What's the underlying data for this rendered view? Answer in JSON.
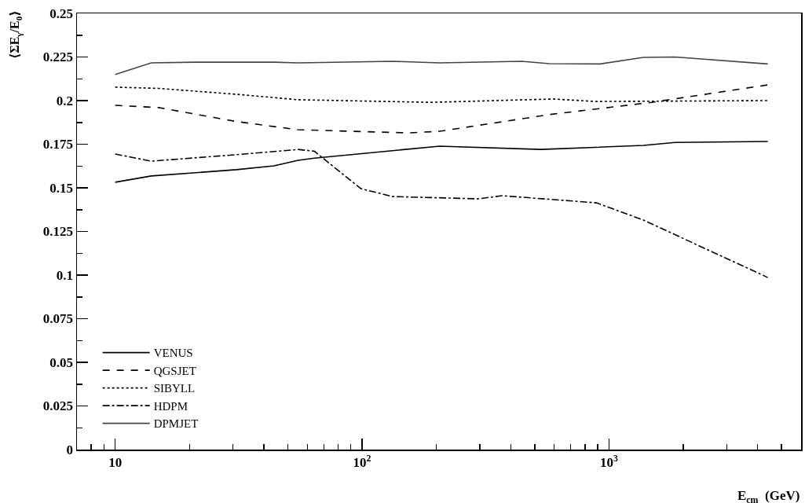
{
  "chart_data": {
    "type": "line",
    "xlabel": "E$_{cm}$  (GeV)",
    "ylabel": "⟨ΣE$_{γ}$/E$_{0}$⟩",
    "log": "x",
    "xlim": [
      7,
      6000
    ],
    "ylim": [
      0,
      0.25
    ],
    "xticks": [
      {
        "value": 8,
        "label": null
      },
      {
        "value": 9,
        "label": null
      },
      10,
      {
        "value": 20,
        "label": null
      },
      {
        "value": 30,
        "label": null
      },
      {
        "value": 40,
        "label": null
      },
      {
        "value": 50,
        "label": null
      },
      {
        "value": 60,
        "label": null
      },
      {
        "value": 70,
        "label": null
      },
      {
        "value": 80,
        "label": null
      },
      {
        "value": 90,
        "label": null
      },
      {
        "value": 100,
        "label": "10$^{2}$"
      },
      {
        "value": 200,
        "label": null
      },
      {
        "value": 300,
        "label": null
      },
      {
        "value": 400,
        "label": null
      },
      {
        "value": 500,
        "label": null
      },
      {
        "value": 600,
        "label": null
      },
      {
        "value": 700,
        "label": null
      },
      {
        "value": 800,
        "label": null
      },
      {
        "value": 900,
        "label": null
      },
      {
        "value": 1000,
        "label": "10$^{3}$"
      },
      {
        "value": 2000,
        "label": null
      },
      {
        "value": 3000,
        "label": null
      },
      {
        "value": 4000,
        "label": null
      },
      {
        "value": 5000,
        "label": null
      }
    ],
    "yticks": [
      0,
      {
        "value": 0.0125,
        "label": null
      },
      0.025,
      {
        "value": 0.0375,
        "label": null
      },
      0.05,
      {
        "value": 0.0625,
        "label": null
      },
      0.075,
      {
        "value": 0.0875,
        "label": null
      },
      0.1,
      {
        "value": 0.1125,
        "label": null
      },
      0.125,
      {
        "value": 0.1375,
        "label": null
      },
      0.15,
      {
        "value": 0.1625,
        "label": null
      },
      0.175,
      {
        "value": 0.1875,
        "label": null
      },
      0.2,
      {
        "value": 0.2125,
        "label": null
      },
      0.225,
      {
        "value": 0.2375,
        "label": null
      },
      0.25
    ],
    "grid": false,
    "legend": "bottom left",
    "marker": "none",
    "series": [
      {
        "name": "VENUS",
        "color": "#000000",
        "line_style": "solid",
        "x": [
          10,
          14,
          31,
          44,
          55,
          64,
          206,
          530,
          1380,
          1850,
          4400
        ],
        "values": [
          0.1532,
          0.1568,
          0.1604,
          0.1626,
          0.1658,
          0.167,
          0.1739,
          0.172,
          0.1743,
          0.176,
          0.1766
        ]
      },
      {
        "name": "QGSJET",
        "color": "#000000",
        "line_style": "dashed",
        "x": [
          10,
          15,
          31,
          55,
          154,
          206,
          574,
          1490,
          4400
        ],
        "values": [
          0.1973,
          0.196,
          0.188,
          0.1833,
          0.1815,
          0.1824,
          0.192,
          0.199,
          0.209
        ]
      },
      {
        "name": "SIBYLL",
        "color": "#000000",
        "line_style": "dotted",
        "x": [
          10,
          15,
          31,
          55,
          190,
          594,
          890,
          4400
        ],
        "values": [
          0.2077,
          0.207,
          0.2036,
          0.2005,
          0.199,
          0.2009,
          0.1995,
          0.2
        ]
      },
      {
        "name": "HDPM",
        "color": "#000000",
        "line_style": "dashdot",
        "x": [
          10,
          14,
          31,
          55,
          64,
          99,
          133,
          297,
          369,
          890,
          1380,
          4400
        ],
        "values": [
          0.1694,
          0.1653,
          0.169,
          0.172,
          0.171,
          0.1495,
          0.145,
          0.1437,
          0.1455,
          0.1414,
          0.1315,
          0.0986
        ]
      },
      {
        "name": "DPMJET",
        "color": "#444444",
        "line_style": "solid",
        "x": [
          10,
          14,
          21,
          44,
          55,
          133,
          206,
          443,
          574,
          920,
          1380,
          1850,
          4400
        ],
        "values": [
          0.215,
          0.2216,
          0.222,
          0.222,
          0.2216,
          0.2225,
          0.2216,
          0.2225,
          0.2212,
          0.221,
          0.2248,
          0.225,
          0.221
        ]
      }
    ]
  }
}
